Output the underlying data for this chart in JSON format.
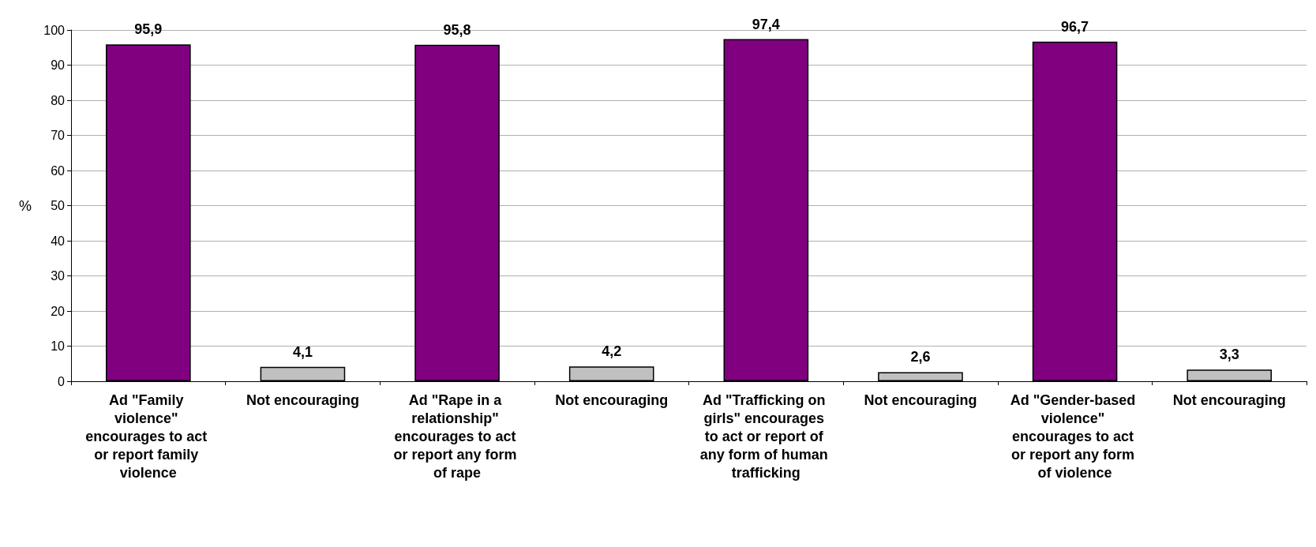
{
  "chart_data": {
    "type": "bar",
    "ylabel": "%",
    "categories": [
      "Ad \"Family violence\" encourages to act or report family violence",
      "Not encouraging",
      "Ad \"Rape in a relationship\" encourages to act or report any form of rape",
      "Not encouraging",
      "Ad \"Trafficking on girls\" encourages to act or report of any form of human trafficking",
      "Not encouraging",
      "Ad \"Gender-based violence\" encourages to act or report any form of violence",
      "Not encouraging"
    ],
    "values": [
      95.9,
      4.1,
      95.8,
      4.2,
      97.4,
      2.6,
      96.7,
      3.3
    ],
    "colors": [
      "#800080",
      "#c0c0c0",
      "#800080",
      "#c0c0c0",
      "#800080",
      "#c0c0c0",
      "#800080",
      "#c0c0c0"
    ],
    "value_labels": [
      "95,9",
      "4,1",
      "95,8",
      "4,2",
      "97,4",
      "2,6",
      "96,7",
      "3,3"
    ],
    "ylim": [
      0,
      100
    ],
    "yticks": [
      0,
      10,
      20,
      30,
      40,
      50,
      60,
      70,
      80,
      90,
      100
    ],
    "grid": "y"
  }
}
